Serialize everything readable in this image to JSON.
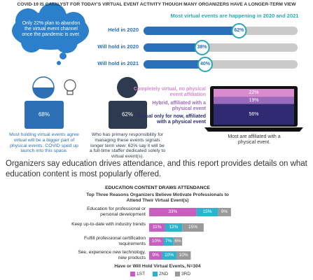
{
  "header": {
    "title": "COVID-19 IS CATALYST FOR TODAY'S VIRTUAL EVENT ACTIVITY THOUGH MANY ORGANIZERS HAVE A LONGER-TERM VIEW"
  },
  "bubble": {
    "text": "Only 22% plan to abandon the virtual event channel once the pandemic is over."
  },
  "timing": {
    "title": "Most virtual events are happening in 2020 and 2021",
    "rows": [
      {
        "label": "Held in 2020",
        "value": 62,
        "value_label": "62%"
      },
      {
        "label": "Will hold in 2020",
        "value": 38,
        "value_label": "38%"
      },
      {
        "label": "Will hold in 2021",
        "value": 40,
        "value_label": "40%"
      }
    ]
  },
  "figures": [
    {
      "value": "68%",
      "text": "Most holding virtual events agree virtual will be a bigger part of physical events. COVID sped up launch into this space."
    },
    {
      "value": "62%",
      "text": "Who has primary responsibility for managing these events signals longer term view: 62% say it will be a full-time staffer dedicated solely to virtual event(s)."
    }
  ],
  "affiliation": {
    "segments": [
      {
        "label": "Completely virtual, no physical event affiliation",
        "value": 22,
        "value_label": "22%",
        "color": "#d98bd0"
      },
      {
        "label": "Hybrid, affiliated with a physical event",
        "value": 19,
        "value_label": "19%",
        "color": "#9a6bbd"
      },
      {
        "label": "Virtual only for now, affiliated with a physical event",
        "value": 56,
        "value_label": "56%",
        "color": "#2f2b73"
      }
    ],
    "caption": "Most are affiliated with a physical event."
  },
  "paragraph": "Organizers say education drives attendance, and this report provides details on what education content is most popularly offered.",
  "chart_data": {
    "type": "bar",
    "orientation": "horizontal",
    "stacked": true,
    "title": "EDUCATION CONTENT DRAWS ATTENDANCE",
    "subtitle": "Top Three Reasons Organizers Believe Motivate Professionals to Attend Their Virtual Event(s)",
    "categories": [
      "Education for professional or personal development",
      "Keep up-to-date with industry trends",
      "Fulfill professional certification requirements",
      "See, experience new technology, new products"
    ],
    "series": [
      {
        "name": "1ST",
        "color": "#c65fbf",
        "values": [
          33,
          11,
          10,
          9
        ],
        "value_labels": [
          "33%",
          "11%",
          "10%",
          "9%"
        ]
      },
      {
        "name": "2ND",
        "color": "#2db4cc",
        "values": [
          15,
          12,
          7,
          10
        ],
        "value_labels": [
          "15%",
          "12%",
          "7%",
          "10%"
        ]
      },
      {
        "name": "3RD",
        "color": "#9a9a9a",
        "values": [
          9,
          15,
          6,
          10
        ],
        "value_labels": [
          "9%",
          "15%",
          "6%",
          "10%"
        ]
      }
    ],
    "x_label": "Have or Will Hold Virtual Events, N=304"
  }
}
